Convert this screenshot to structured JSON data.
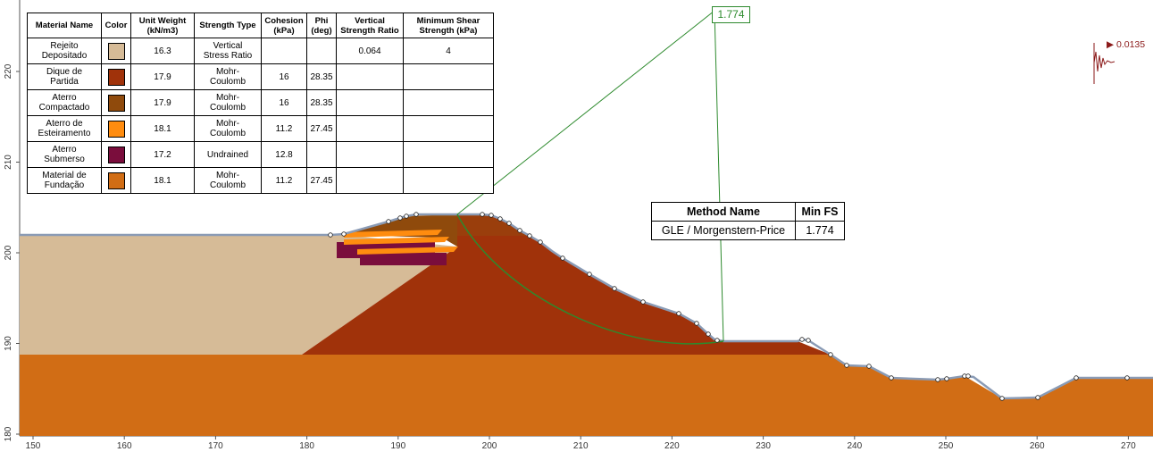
{
  "materials_table": {
    "headers": [
      "Material Name",
      "Color",
      "Unit Weight\n(kN/m3)",
      "Strength Type",
      "Cohesion\n(kPa)",
      "Phi\n(deg)",
      "Vertical\nStrength Ratio",
      "Minimum Shear\nStrength (kPa)"
    ],
    "rows": [
      {
        "name": "Rejeito\nDepositado",
        "color": "#d6bb97",
        "unit_weight": "16.3",
        "strength_type": "Vertical\nStress Ratio",
        "cohesion": "",
        "phi": "",
        "vsr": "0.064",
        "min_shear": "4"
      },
      {
        "name": "Dique de\nPartida",
        "color": "#a0320a",
        "unit_weight": "17.9",
        "strength_type": "Mohr-\nCoulomb",
        "cohesion": "16",
        "phi": "28.35",
        "vsr": "",
        "min_shear": ""
      },
      {
        "name": "Aterro\nCompactado",
        "color": "#8f4a0c",
        "unit_weight": "17.9",
        "strength_type": "Mohr-\nCoulomb",
        "cohesion": "16",
        "phi": "28.35",
        "vsr": "",
        "min_shear": ""
      },
      {
        "name": "Aterro de\nEsteiramento",
        "color": "#ff8c0f",
        "unit_weight": "18.1",
        "strength_type": "Mohr-\nCoulomb",
        "cohesion": "11.2",
        "phi": "27.45",
        "vsr": "",
        "min_shear": ""
      },
      {
        "name": "Aterro\nSubmerso",
        "color": "#7a0d3c",
        "unit_weight": "17.2",
        "strength_type": "Undrained",
        "cohesion": "12.8",
        "phi": "",
        "vsr": "",
        "min_shear": ""
      },
      {
        "name": "Material de\nFundação",
        "color": "#d16d15",
        "unit_weight": "18.1",
        "strength_type": "Mohr-\nCoulomb",
        "cohesion": "11.2",
        "phi": "27.45",
        "vsr": "",
        "min_shear": ""
      }
    ]
  },
  "fs_table": {
    "headers": [
      "Method Name",
      "Min FS"
    ],
    "rows": [
      [
        "GLE / Morgenstern-Price",
        "1.774"
      ]
    ]
  },
  "fs_label": "1.774",
  "seismic_label": "▶ 0.0135",
  "x_ticks": [
    "150",
    "160",
    "170",
    "180",
    "190",
    "200",
    "210",
    "220",
    "230",
    "240",
    "250",
    "260",
    "270"
  ],
  "y_ticks": [
    "180",
    "190",
    "200",
    "210",
    "220"
  ],
  "colors": {
    "slip_line": "#2d8a2d",
    "ground_line": "#8a9bb5",
    "seismic": "#8b1a1a"
  },
  "icons": [
    "slip-center-marker",
    "seismic-load-icon"
  ]
}
